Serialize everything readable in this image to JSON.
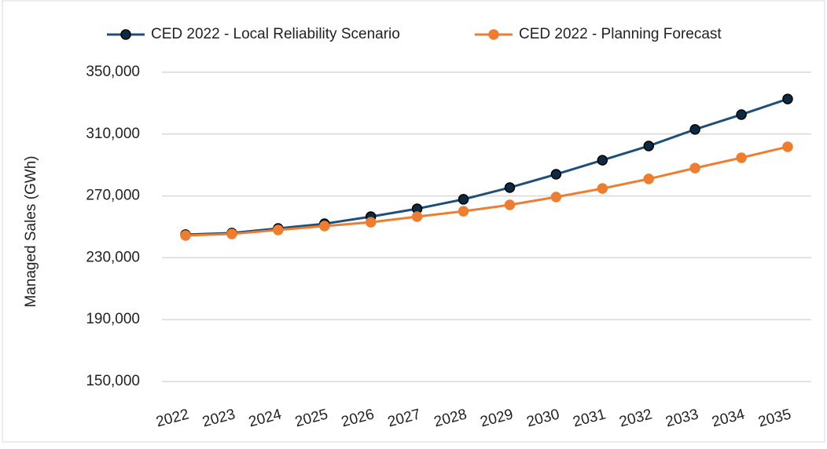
{
  "chart_data": {
    "type": "line",
    "y_label": "Managed Sales (GWh)",
    "categories": [
      "2022",
      "2023",
      "2024",
      "2025",
      "2026",
      "2027",
      "2028",
      "2029",
      "2030",
      "2031",
      "2032",
      "2033",
      "2034",
      "2035"
    ],
    "series": [
      {
        "name": "CED 2022 - Local Reliability Scenario",
        "color": "#1f4e79",
        "marker_color": "#0d2a44",
        "values": [
          245000,
          246000,
          249000,
          252000,
          256600,
          261700,
          267800,
          275400,
          284000,
          293100,
          302300,
          313000,
          322600,
          332700
        ]
      },
      {
        "name": "CED 2022 - Planning Forecast",
        "color": "#ed7d31",
        "marker_color": "#ed7d31",
        "values": [
          244400,
          245400,
          248000,
          250500,
          253000,
          256600,
          260100,
          264200,
          269300,
          274800,
          281000,
          288000,
          294700,
          301800
        ]
      }
    ],
    "ylim": [
      150000,
      350000
    ],
    "yticks": [
      {
        "value": 150000,
        "label": "150,000"
      },
      {
        "value": 190000,
        "label": "190,000"
      },
      {
        "value": 230000,
        "label": "230,000"
      },
      {
        "value": 270000,
        "label": "270,000"
      },
      {
        "value": 310000,
        "label": "310,000"
      },
      {
        "value": 350000,
        "label": "350,000"
      }
    ],
    "grid": true,
    "legend": "top"
  }
}
